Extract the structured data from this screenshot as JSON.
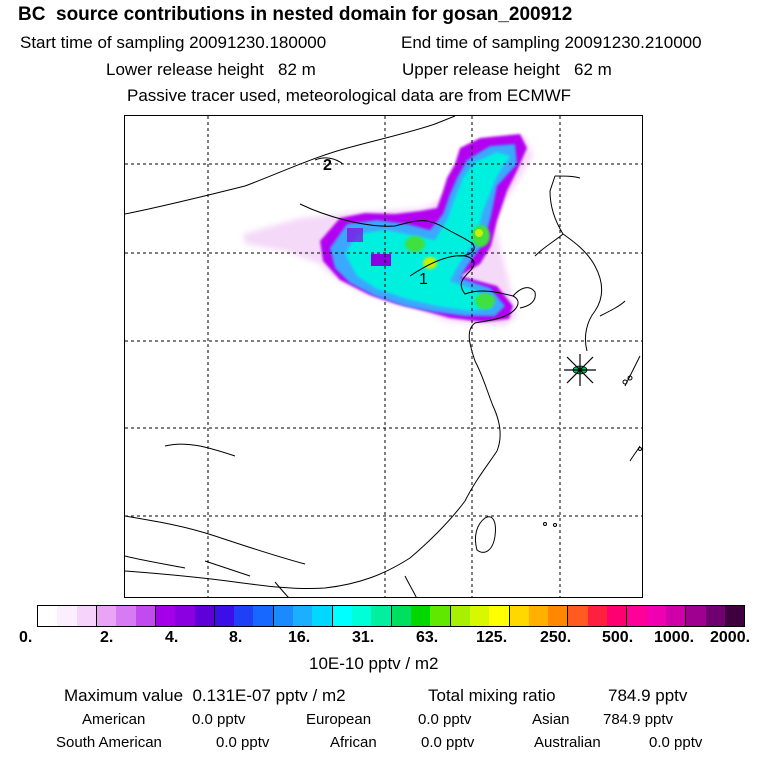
{
  "header": {
    "title": "BC  source contributions in nested domain for gosan_200912",
    "start_label": "Start time of sampling 20091230.180000",
    "end_label": "End time of sampling 20091230.210000",
    "lower_label": "Lower release height   82 m",
    "upper_label": "Upper release height   62 m",
    "tracer_note": "Passive tracer used, meteorological data are from ECMWF"
  },
  "map": {
    "labels": {
      "label_1": "1",
      "label_2": "2"
    },
    "colors": {
      "low": "#f4d9f8",
      "mid_purple": "#b400f0",
      "blue": "#3aa8ff",
      "cyan": "#00f0e0",
      "green": "#40e040",
      "yellow_green": "#c8f000"
    }
  },
  "colorbar": {
    "colors": [
      "#ffffff",
      "#fbeefe",
      "#f5d3fb",
      "#e9a4f6",
      "#d67bf3",
      "#c24bef",
      "#a300e8",
      "#8a00e0",
      "#6000d8",
      "#3b10e8",
      "#2040f8",
      "#1768ff",
      "#1b8aff",
      "#1ab0ff",
      "#00d8ff",
      "#00ffff",
      "#00ffd8",
      "#00f0a0",
      "#00e060",
      "#00d800",
      "#60e800",
      "#a8f000",
      "#d8f800",
      "#ffff00",
      "#ffd800",
      "#ffb000",
      "#ff8800",
      "#ff5a20",
      "#ff2040",
      "#ff0070",
      "#ff0098",
      "#f000b0",
      "#d000a8",
      "#a00090",
      "#700070",
      "#400040"
    ],
    "ticks": [
      "0.",
      "2.",
      "4.",
      "8.",
      "16.",
      "31.",
      "63.",
      "125.",
      "250.",
      "500.",
      "1000.",
      "2000."
    ],
    "unit": "10E-10 pptv / m2"
  },
  "stats": {
    "max_value": "Maximum value  0.131E-07 pptv / m2",
    "total_label": "Total mixing ratio",
    "total_value": "784.9 pptv",
    "regions": [
      {
        "name": "American",
        "value": "0.0 pptv"
      },
      {
        "name": "European",
        "value": "0.0 pptv"
      },
      {
        "name": "Asian",
        "value": "784.9 pptv"
      },
      {
        "name": "South American",
        "value": "0.0 pptv"
      },
      {
        "name": "African",
        "value": "0.0 pptv"
      },
      {
        "name": "Australian",
        "value": "0.0 pptv"
      }
    ]
  }
}
